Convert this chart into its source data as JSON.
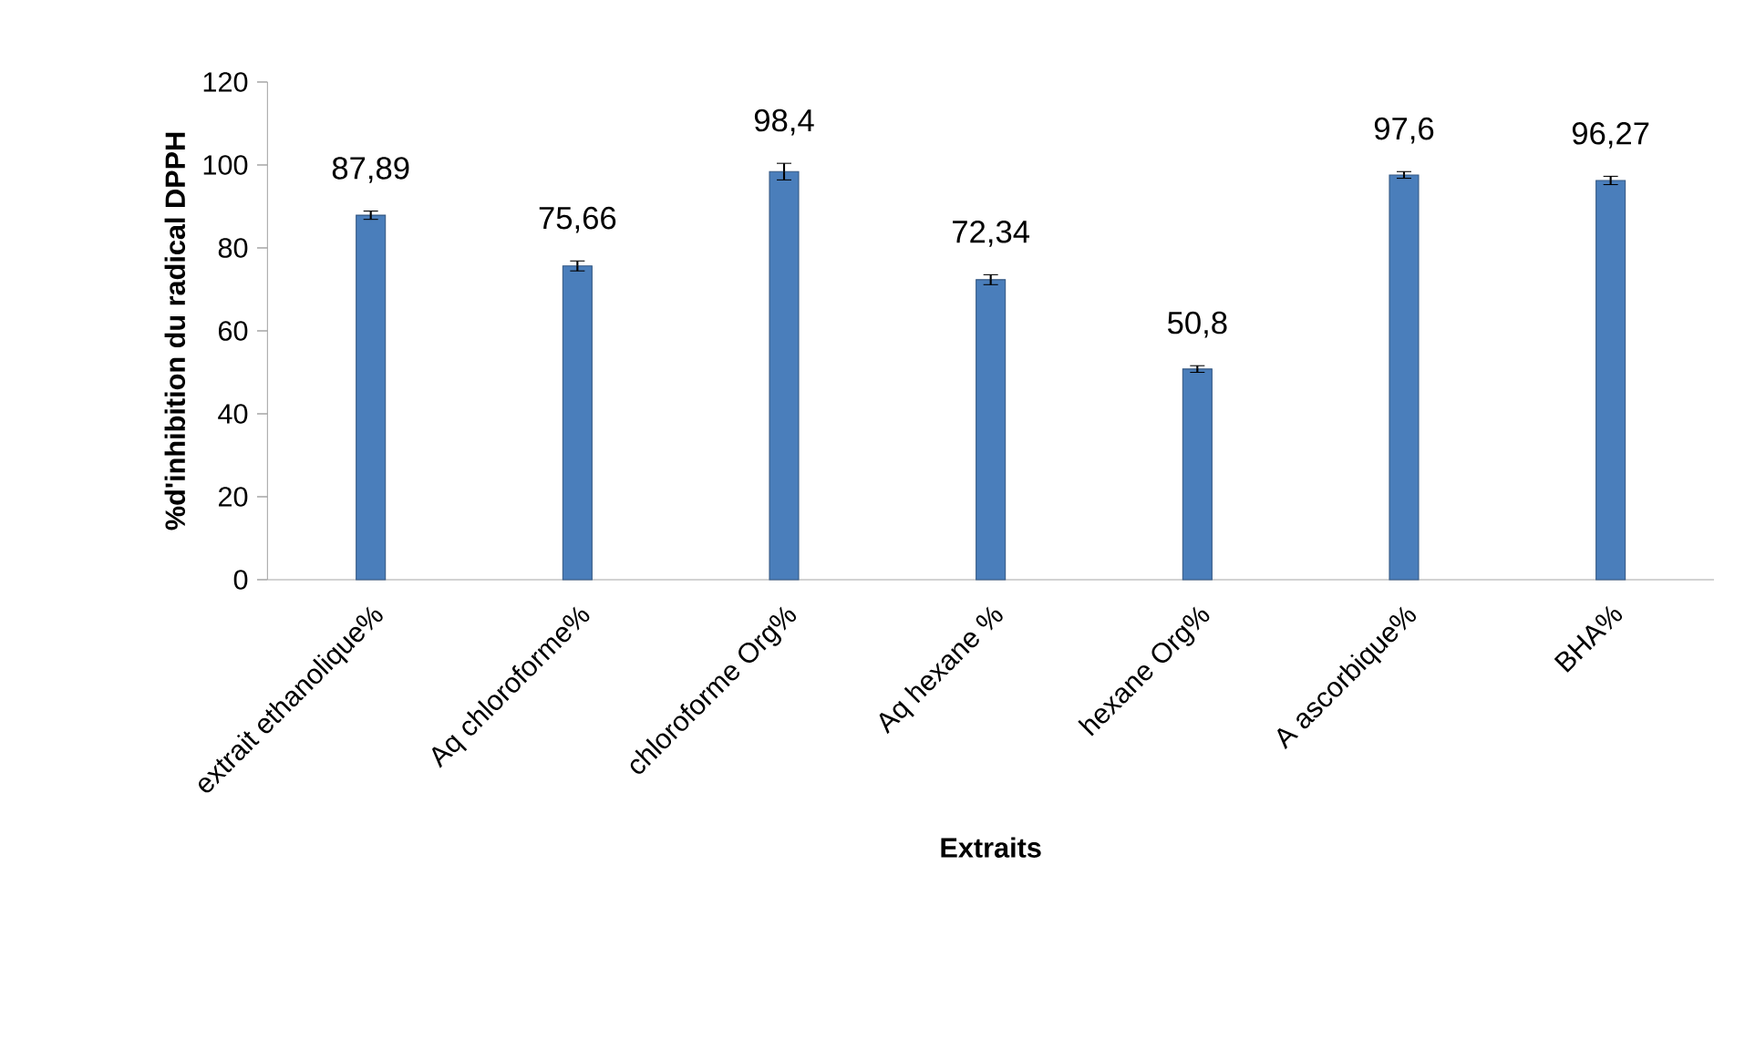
{
  "chart_data": {
    "type": "bar",
    "xlabel": "Extraits",
    "ylabel": "%d'inhibition du radical DPPH",
    "categories": [
      "extrait ethanolique%",
      "Aq chloroforme%",
      "chloroforme Org%",
      "Aq hexane %",
      "hexane Org%",
      "A ascorbique%",
      "BHA%"
    ],
    "values": [
      87.89,
      75.66,
      98.4,
      72.34,
      50.8,
      97.6,
      96.27
    ],
    "errors": [
      1,
      1.2,
      2,
      1.2,
      0.8,
      0.8,
      1
    ],
    "value_labels": [
      "87,89",
      "75,66",
      "98,4",
      "72,34",
      "50,8",
      "97,6",
      "96,27"
    ],
    "color": "#4a7ebb",
    "ylim": [
      0,
      120
    ],
    "yticks": [
      0,
      20,
      40,
      60,
      80,
      100,
      120
    ]
  }
}
